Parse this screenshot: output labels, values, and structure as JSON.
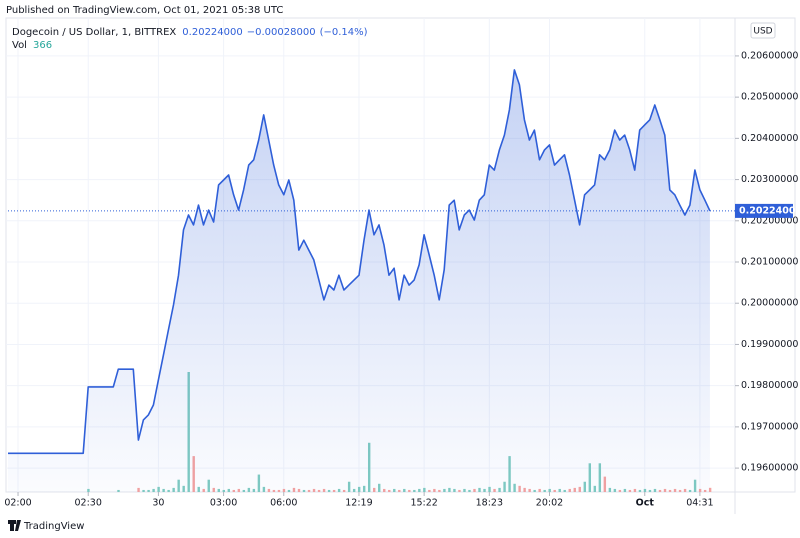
{
  "header": {
    "published": "Published on TradingView.com, Oct 01, 2021 05:38 UTC"
  },
  "footer": {
    "brand": "TradingView"
  },
  "chart_data": {
    "type": "line",
    "currency": "USD",
    "last_price": {
      "value": 0.20224,
      "label": "0.20224000"
    },
    "change": "−0.00028000",
    "change_pct": "(−0.14%)",
    "xlim": [
      0,
      145
    ],
    "xticks": [
      {
        "value": 2,
        "label": "02:00"
      },
      {
        "value": 16,
        "label": "02:30"
      },
      {
        "value": 30,
        "label": "30"
      },
      {
        "value": 43,
        "label": "03:00"
      },
      {
        "value": 55,
        "label": "06:00"
      },
      {
        "value": 70,
        "label": "12:19"
      },
      {
        "value": 83,
        "label": "15:22"
      },
      {
        "value": 96,
        "label": "18:23"
      },
      {
        "value": 108,
        "label": "20:02"
      },
      {
        "value": 127,
        "label": "Oct"
      },
      {
        "value": 138,
        "label": "04:31"
      }
    ],
    "ylim": [
      0.19542,
      0.20692
    ],
    "yticks": [
      {
        "value": 0.196,
        "label": "0.19600000"
      },
      {
        "value": 0.197,
        "label": "0.19700000"
      },
      {
        "value": 0.198,
        "label": "0.19800000"
      },
      {
        "value": 0.199,
        "label": "0.19900000"
      },
      {
        "value": 0.2,
        "label": "0.20000000"
      },
      {
        "value": 0.201,
        "label": "0.20100000"
      },
      {
        "value": 0.202,
        "label": "0.20200000"
      },
      {
        "value": 0.203,
        "label": "0.20300000"
      },
      {
        "value": 0.204,
        "label": "0.20400000"
      },
      {
        "value": 0.205,
        "label": "0.20500000"
      },
      {
        "value": 0.206,
        "label": "0.20600000"
      }
    ],
    "grid": true,
    "series": [
      {
        "name": "Dogecoin / US Dollar, 1, BITTREX",
        "color": "#2f5fd8",
        "values": [
          0.19636,
          0.19636,
          0.19636,
          0.19636,
          0.19636,
          0.19636,
          0.19636,
          0.19636,
          0.19636,
          0.19636,
          0.19636,
          0.19636,
          0.19636,
          0.19636,
          0.19636,
          0.19636,
          0.19797,
          0.19797,
          0.19797,
          0.19797,
          0.19797,
          0.19797,
          0.1984,
          0.1984,
          0.1984,
          0.1984,
          0.19668,
          0.19717,
          0.19729,
          0.19753,
          0.19814,
          0.19874,
          0.19935,
          0.19996,
          0.20068,
          0.20178,
          0.20214,
          0.2019,
          0.20238,
          0.2019,
          0.20226,
          0.20197,
          0.20287,
          0.20299,
          0.20311,
          0.20263,
          0.20226,
          0.20275,
          0.20335,
          0.20348,
          0.20396,
          0.20457,
          0.20396,
          0.20335,
          0.20287,
          0.20263,
          0.20299,
          0.2025,
          0.20129,
          0.20153,
          0.20129,
          0.20105,
          0.20056,
          0.20008,
          0.20044,
          0.20032,
          0.20068,
          0.20032,
          0.20044,
          0.20056,
          0.20068,
          0.20153,
          0.20226,
          0.20166,
          0.2019,
          0.20141,
          0.20068,
          0.20085,
          0.20008,
          0.20068,
          0.20044,
          0.20056,
          0.20093,
          0.20166,
          0.20117,
          0.20068,
          0.20008,
          0.20081,
          0.20238,
          0.2025,
          0.20178,
          0.20214,
          0.20226,
          0.20202,
          0.2025,
          0.20263,
          0.20335,
          0.20323,
          0.20372,
          0.20408,
          0.20469,
          0.20566,
          0.2053,
          0.20445,
          0.20396,
          0.2042,
          0.20348,
          0.20372,
          0.20384,
          0.20335,
          0.20348,
          0.2036,
          0.20311,
          0.2025,
          0.2019,
          0.20263,
          0.20275,
          0.20287,
          0.2036,
          0.20348,
          0.20372,
          0.2042,
          0.20396,
          0.20408,
          0.20372,
          0.20323,
          0.2042,
          0.20433,
          0.20445,
          0.20481,
          0.20445,
          0.20408,
          0.20275,
          0.20263,
          0.20238,
          0.20214,
          0.20238,
          0.20323,
          0.20275,
          0.2025,
          0.20224
        ]
      }
    ],
    "volume": {
      "name": "Vol",
      "up_color": "#7fcbc1",
      "down_color": "#f4a2a0",
      "values": [
        0,
        0,
        0,
        0,
        0,
        0,
        0,
        0,
        0,
        0,
        0,
        0,
        0,
        0,
        0,
        0,
        270,
        0,
        0,
        0,
        0,
        0,
        180,
        0,
        0,
        0,
        360,
        180,
        180,
        270,
        450,
        270,
        180,
        360,
        1080,
        540,
        10530,
        3150,
        450,
        270,
        1080,
        360,
        270,
        180,
        270,
        180,
        270,
        180,
        360,
        270,
        1530,
        450,
        270,
        180,
        180,
        270,
        180,
        360,
        270,
        180,
        180,
        270,
        180,
        270,
        180,
        180,
        270,
        180,
        900,
        270,
        450,
        540,
        4320,
        360,
        720,
        270,
        180,
        270,
        180,
        270,
        180,
        180,
        270,
        360,
        180,
        270,
        180,
        270,
        360,
        270,
        180,
        270,
        180,
        270,
        360,
        270,
        450,
        270,
        360,
        900,
        3150,
        720,
        540,
        360,
        270,
        180,
        270,
        180,
        270,
        180,
        270,
        180,
        270,
        360,
        450,
        900,
        2520,
        540,
        2520,
        1350,
        360,
        270,
        180,
        270,
        180,
        270,
        180,
        270,
        180,
        270,
        180,
        270,
        180,
        270,
        180,
        270,
        180,
        1080,
        270,
        180,
        366
      ]
    }
  }
}
